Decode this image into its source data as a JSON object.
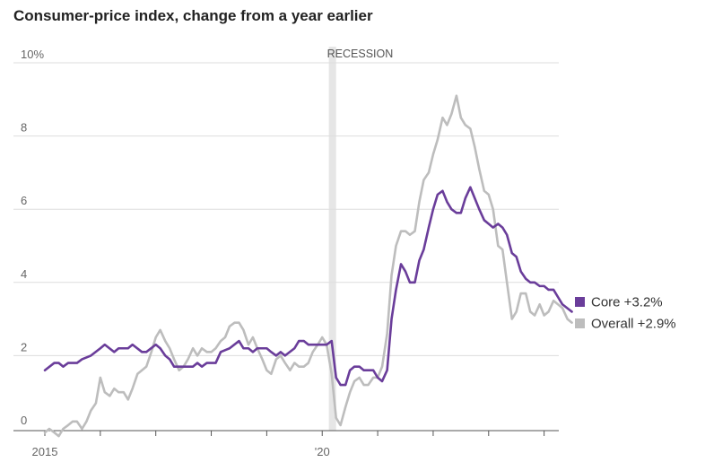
{
  "chart_data": {
    "type": "line",
    "title": "Consumer-price index, change from a year earlier",
    "ylim": [
      0,
      10
    ],
    "xlim": [
      2015.0,
      2024.2
    ],
    "grid": true,
    "y_ticks": [
      {
        "value": 0,
        "label": "0"
      },
      {
        "value": 2,
        "label": "2"
      },
      {
        "value": 4,
        "label": "4"
      },
      {
        "value": 6,
        "label": "6"
      },
      {
        "value": 8,
        "label": "8"
      },
      {
        "value": 10,
        "label": "10%"
      }
    ],
    "x_ticks": [
      2015,
      2016,
      2017,
      2018,
      2019,
      2020,
      2021,
      2022,
      2023,
      2024
    ],
    "x_tick_labels": [
      {
        "value": 2015,
        "label": "2015"
      },
      {
        "value": 2020,
        "label": "'20"
      }
    ],
    "recession": {
      "label": "RECESSION",
      "start": 2020.12,
      "end": 2020.25
    },
    "legend_placement": "right",
    "series": [
      {
        "name": "Core +3.2%",
        "color": "#6a3d9a",
        "points": [
          [
            2015.0,
            1.6
          ],
          [
            2015.17,
            1.8
          ],
          [
            2015.25,
            1.8
          ],
          [
            2015.33,
            1.7
          ],
          [
            2015.42,
            1.8
          ],
          [
            2015.58,
            1.8
          ],
          [
            2015.67,
            1.9
          ],
          [
            2015.83,
            2.0
          ],
          [
            2016.0,
            2.2
          ],
          [
            2016.08,
            2.3
          ],
          [
            2016.25,
            2.1
          ],
          [
            2016.33,
            2.2
          ],
          [
            2016.5,
            2.2
          ],
          [
            2016.58,
            2.3
          ],
          [
            2016.75,
            2.1
          ],
          [
            2016.83,
            2.1
          ],
          [
            2017.0,
            2.3
          ],
          [
            2017.08,
            2.2
          ],
          [
            2017.17,
            2.0
          ],
          [
            2017.25,
            1.9
          ],
          [
            2017.33,
            1.7
          ],
          [
            2017.5,
            1.7
          ],
          [
            2017.67,
            1.7
          ],
          [
            2017.75,
            1.8
          ],
          [
            2017.83,
            1.7
          ],
          [
            2017.92,
            1.8
          ],
          [
            2018.08,
            1.8
          ],
          [
            2018.17,
            2.1
          ],
          [
            2018.33,
            2.2
          ],
          [
            2018.5,
            2.4
          ],
          [
            2018.58,
            2.2
          ],
          [
            2018.67,
            2.2
          ],
          [
            2018.75,
            2.1
          ],
          [
            2018.83,
            2.2
          ],
          [
            2019.0,
            2.2
          ],
          [
            2019.08,
            2.1
          ],
          [
            2019.17,
            2.0
          ],
          [
            2019.25,
            2.1
          ],
          [
            2019.33,
            2.0
          ],
          [
            2019.5,
            2.2
          ],
          [
            2019.58,
            2.4
          ],
          [
            2019.67,
            2.4
          ],
          [
            2019.75,
            2.3
          ],
          [
            2019.92,
            2.3
          ],
          [
            2020.08,
            2.3
          ],
          [
            2020.17,
            2.4
          ],
          [
            2020.25,
            1.4
          ],
          [
            2020.33,
            1.2
          ],
          [
            2020.42,
            1.2
          ],
          [
            2020.5,
            1.6
          ],
          [
            2020.58,
            1.7
          ],
          [
            2020.67,
            1.7
          ],
          [
            2020.75,
            1.6
          ],
          [
            2020.92,
            1.6
          ],
          [
            2021.0,
            1.4
          ],
          [
            2021.08,
            1.3
          ],
          [
            2021.17,
            1.6
          ],
          [
            2021.25,
            3.0
          ],
          [
            2021.33,
            3.8
          ],
          [
            2021.42,
            4.5
          ],
          [
            2021.5,
            4.3
          ],
          [
            2021.58,
            4.0
          ],
          [
            2021.67,
            4.0
          ],
          [
            2021.75,
            4.6
          ],
          [
            2021.83,
            4.9
          ],
          [
            2021.92,
            5.5
          ],
          [
            2022.0,
            6.0
          ],
          [
            2022.08,
            6.4
          ],
          [
            2022.17,
            6.5
          ],
          [
            2022.25,
            6.2
          ],
          [
            2022.33,
            6.0
          ],
          [
            2022.42,
            5.9
          ],
          [
            2022.5,
            5.9
          ],
          [
            2022.58,
            6.3
          ],
          [
            2022.67,
            6.6
          ],
          [
            2022.75,
            6.3
          ],
          [
            2022.83,
            6.0
          ],
          [
            2022.92,
            5.7
          ],
          [
            2023.0,
            5.6
          ],
          [
            2023.08,
            5.5
          ],
          [
            2023.17,
            5.6
          ],
          [
            2023.25,
            5.5
          ],
          [
            2023.33,
            5.3
          ],
          [
            2023.42,
            4.8
          ],
          [
            2023.5,
            4.7
          ],
          [
            2023.58,
            4.3
          ],
          [
            2023.67,
            4.1
          ],
          [
            2023.75,
            4.0
          ],
          [
            2023.83,
            4.0
          ],
          [
            2023.92,
            3.9
          ],
          [
            2024.0,
            3.9
          ],
          [
            2024.08,
            3.8
          ],
          [
            2024.17,
            3.8
          ],
          [
            2024.25,
            3.6
          ],
          [
            2024.33,
            3.4
          ],
          [
            2024.5,
            3.2
          ]
        ]
      },
      {
        "name": "Overall +2.9%",
        "color": "#bdbdbd",
        "points": [
          [
            2015.0,
            -0.1
          ],
          [
            2015.08,
            0.0
          ],
          [
            2015.17,
            -0.1
          ],
          [
            2015.25,
            -0.2
          ],
          [
            2015.33,
            0.0
          ],
          [
            2015.42,
            0.1
          ],
          [
            2015.5,
            0.2
          ],
          [
            2015.58,
            0.2
          ],
          [
            2015.67,
            0.0
          ],
          [
            2015.75,
            0.2
          ],
          [
            2015.83,
            0.5
          ],
          [
            2015.92,
            0.7
          ],
          [
            2016.0,
            1.4
          ],
          [
            2016.08,
            1.0
          ],
          [
            2016.17,
            0.9
          ],
          [
            2016.25,
            1.1
          ],
          [
            2016.33,
            1.0
          ],
          [
            2016.42,
            1.0
          ],
          [
            2016.5,
            0.8
          ],
          [
            2016.58,
            1.1
          ],
          [
            2016.67,
            1.5
          ],
          [
            2016.75,
            1.6
          ],
          [
            2016.83,
            1.7
          ],
          [
            2016.92,
            2.1
          ],
          [
            2017.0,
            2.5
          ],
          [
            2017.08,
            2.7
          ],
          [
            2017.17,
            2.4
          ],
          [
            2017.25,
            2.2
          ],
          [
            2017.33,
            1.9
          ],
          [
            2017.42,
            1.6
          ],
          [
            2017.5,
            1.7
          ],
          [
            2017.58,
            1.9
          ],
          [
            2017.67,
            2.2
          ],
          [
            2017.75,
            2.0
          ],
          [
            2017.83,
            2.2
          ],
          [
            2017.92,
            2.1
          ],
          [
            2018.0,
            2.1
          ],
          [
            2018.08,
            2.2
          ],
          [
            2018.17,
            2.4
          ],
          [
            2018.25,
            2.5
          ],
          [
            2018.33,
            2.8
          ],
          [
            2018.42,
            2.9
          ],
          [
            2018.5,
            2.9
          ],
          [
            2018.58,
            2.7
          ],
          [
            2018.67,
            2.3
          ],
          [
            2018.75,
            2.5
          ],
          [
            2018.83,
            2.2
          ],
          [
            2018.92,
            1.9
          ],
          [
            2019.0,
            1.6
          ],
          [
            2019.08,
            1.5
          ],
          [
            2019.17,
            1.9
          ],
          [
            2019.25,
            2.0
          ],
          [
            2019.33,
            1.8
          ],
          [
            2019.42,
            1.6
          ],
          [
            2019.5,
            1.8
          ],
          [
            2019.58,
            1.7
          ],
          [
            2019.67,
            1.7
          ],
          [
            2019.75,
            1.8
          ],
          [
            2019.83,
            2.1
          ],
          [
            2019.92,
            2.3
          ],
          [
            2020.0,
            2.5
          ],
          [
            2020.08,
            2.3
          ],
          [
            2020.17,
            1.5
          ],
          [
            2020.25,
            0.3
          ],
          [
            2020.33,
            0.1
          ],
          [
            2020.42,
            0.6
          ],
          [
            2020.5,
            1.0
          ],
          [
            2020.58,
            1.3
          ],
          [
            2020.67,
            1.4
          ],
          [
            2020.75,
            1.2
          ],
          [
            2020.83,
            1.2
          ],
          [
            2020.92,
            1.4
          ],
          [
            2021.0,
            1.4
          ],
          [
            2021.08,
            1.7
          ],
          [
            2021.17,
            2.6
          ],
          [
            2021.25,
            4.2
          ],
          [
            2021.33,
            5.0
          ],
          [
            2021.42,
            5.4
          ],
          [
            2021.5,
            5.4
          ],
          [
            2021.58,
            5.3
          ],
          [
            2021.67,
            5.4
          ],
          [
            2021.75,
            6.2
          ],
          [
            2021.83,
            6.8
          ],
          [
            2021.92,
            7.0
          ],
          [
            2022.0,
            7.5
          ],
          [
            2022.08,
            7.9
          ],
          [
            2022.17,
            8.5
          ],
          [
            2022.25,
            8.3
          ],
          [
            2022.33,
            8.6
          ],
          [
            2022.42,
            9.1
          ],
          [
            2022.5,
            8.5
          ],
          [
            2022.58,
            8.3
          ],
          [
            2022.67,
            8.2
          ],
          [
            2022.75,
            7.7
          ],
          [
            2022.83,
            7.1
          ],
          [
            2022.92,
            6.5
          ],
          [
            2023.0,
            6.4
          ],
          [
            2023.08,
            6.0
          ],
          [
            2023.17,
            5.0
          ],
          [
            2023.25,
            4.9
          ],
          [
            2023.33,
            4.0
          ],
          [
            2023.42,
            3.0
          ],
          [
            2023.5,
            3.2
          ],
          [
            2023.58,
            3.7
          ],
          [
            2023.67,
            3.7
          ],
          [
            2023.75,
            3.2
          ],
          [
            2023.83,
            3.1
          ],
          [
            2023.92,
            3.4
          ],
          [
            2024.0,
            3.1
          ],
          [
            2024.08,
            3.2
          ],
          [
            2024.17,
            3.5
          ],
          [
            2024.25,
            3.4
          ],
          [
            2024.33,
            3.3
          ],
          [
            2024.42,
            3.0
          ],
          [
            2024.5,
            2.9
          ]
        ]
      }
    ]
  }
}
